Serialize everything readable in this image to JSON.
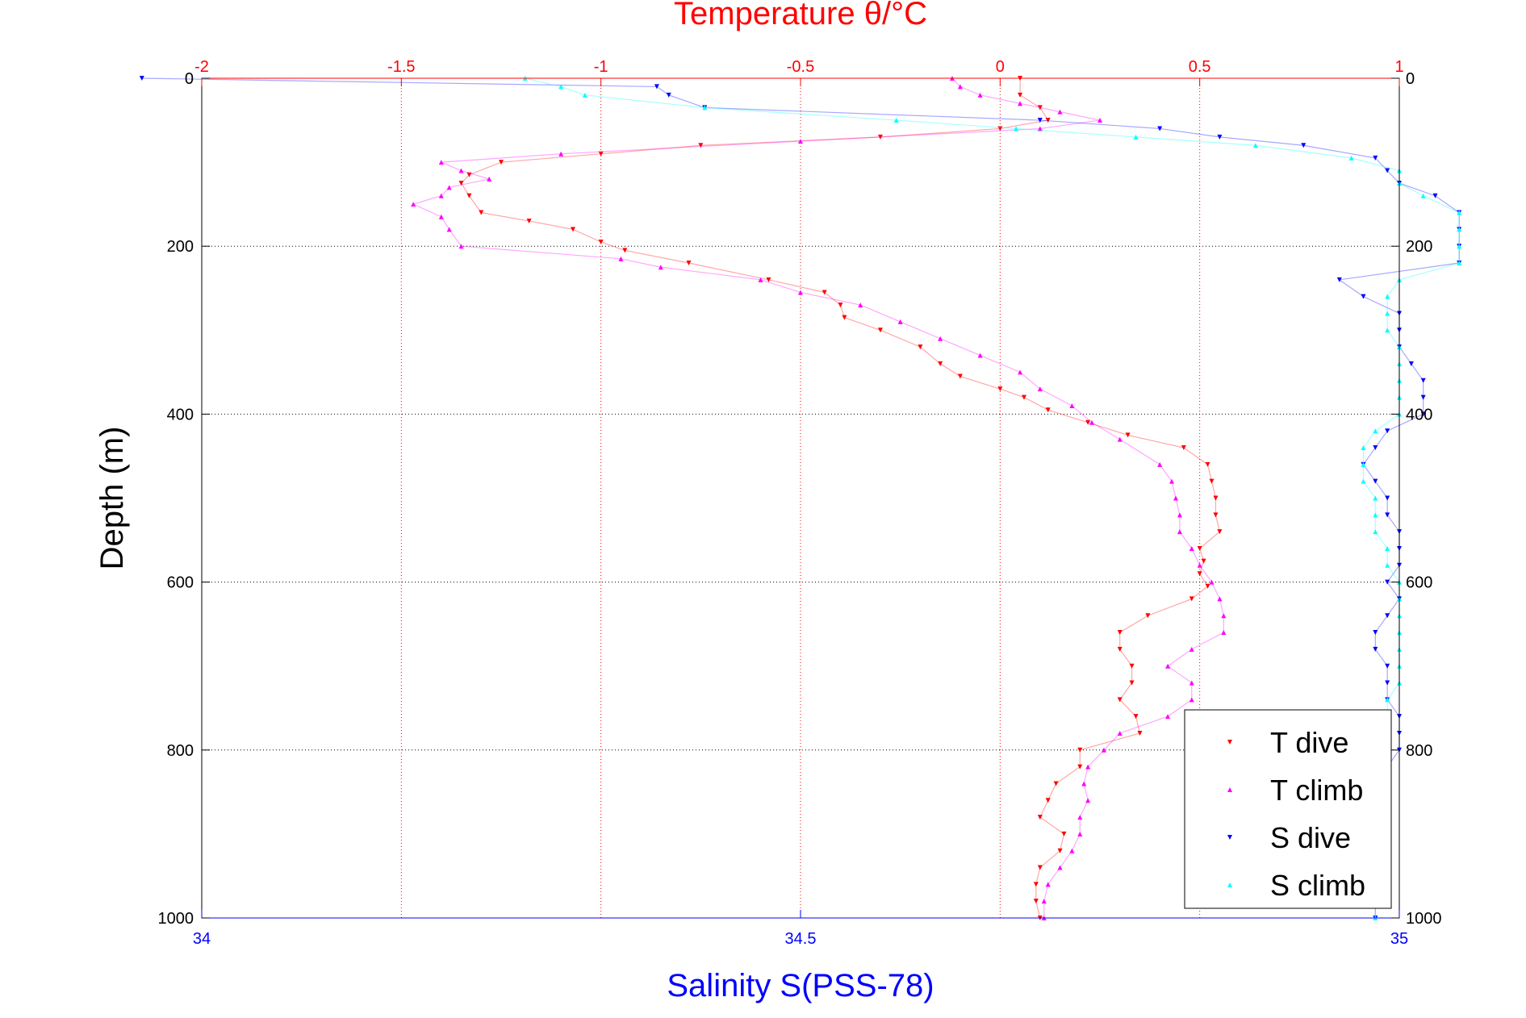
{
  "colors": {
    "temperature_axis": "#ff0000",
    "salinity_axis": "#0000ff",
    "depth_axis": "#000000",
    "t_dive": "#ff0000",
    "t_climb": "#ff00ff",
    "s_dive": "#0000ff",
    "s_climb": "#00ffff",
    "grid": "#000000",
    "vgrid": "#ff0000"
  },
  "chart_data": {
    "type": "scatter",
    "title": "Temperature θ/°C",
    "xlabel": "Salinity S(PSS-78)",
    "ylabel": "Depth (m)",
    "x_top": {
      "label": "Temperature θ/°C",
      "lim": [
        -2,
        1
      ],
      "ticks": [
        -2,
        -1.5,
        -1,
        -0.5,
        0,
        0.5,
        1
      ],
      "tick_labels": [
        "-2",
        "-1.5",
        "-1",
        "-0.5",
        "0",
        "0.5",
        "1"
      ]
    },
    "x_bottom": {
      "label": "Salinity S(PSS-78)",
      "lim": [
        34,
        35
      ],
      "ticks": [
        34,
        34.5,
        35
      ],
      "tick_labels": [
        "34",
        "34.5",
        "35"
      ]
    },
    "y": {
      "label": "Depth (m)",
      "lim": [
        0,
        1000
      ],
      "reversed": true,
      "ticks": [
        0,
        200,
        400,
        600,
        800,
        1000
      ],
      "tick_labels": [
        "0",
        "200",
        "400",
        "600",
        "800",
        "1000"
      ]
    },
    "grid": true,
    "legend": {
      "position": "bottom-right",
      "entries": [
        "T dive",
        "T climb",
        "S dive",
        "S climb"
      ]
    },
    "series": [
      {
        "name": "T dive",
        "axis": "temperature",
        "marker": "triangle-down",
        "depth": [
          0,
          20,
          35,
          50,
          60,
          70,
          80,
          90,
          100,
          115,
          125,
          140,
          160,
          170,
          180,
          195,
          205,
          220,
          240,
          255,
          270,
          285,
          300,
          320,
          340,
          355,
          370,
          380,
          395,
          410,
          425,
          440,
          460,
          480,
          500,
          520,
          540,
          560,
          575,
          590,
          605,
          620,
          640,
          660,
          680,
          700,
          720,
          740,
          760,
          780,
          800,
          820,
          840,
          860,
          880,
          900,
          920,
          940,
          960,
          980,
          1000
        ],
        "x": [
          0.05,
          0.05,
          0.1,
          0.12,
          0.0,
          -0.3,
          -0.75,
          -1.0,
          -1.25,
          -1.33,
          -1.35,
          -1.33,
          -1.3,
          -1.18,
          -1.07,
          -1.0,
          -0.94,
          -0.78,
          -0.58,
          -0.44,
          -0.4,
          -0.39,
          -0.3,
          -0.2,
          -0.15,
          -0.1,
          0.0,
          0.06,
          0.12,
          0.22,
          0.32,
          0.46,
          0.52,
          0.53,
          0.54,
          0.54,
          0.55,
          0.5,
          0.51,
          0.5,
          0.52,
          0.48,
          0.37,
          0.3,
          0.3,
          0.33,
          0.33,
          0.3,
          0.34,
          0.35,
          0.2,
          0.2,
          0.14,
          0.12,
          0.1,
          0.16,
          0.15,
          0.1,
          0.09,
          0.09,
          0.1
        ]
      },
      {
        "name": "T climb",
        "axis": "temperature",
        "marker": "triangle-up",
        "depth": [
          0,
          10,
          20,
          30,
          40,
          50,
          60,
          75,
          90,
          100,
          110,
          120,
          130,
          140,
          150,
          165,
          180,
          200,
          215,
          225,
          240,
          255,
          270,
          290,
          310,
          330,
          350,
          370,
          390,
          410,
          430,
          460,
          480,
          500,
          520,
          540,
          560,
          580,
          600,
          620,
          640,
          660,
          680,
          700,
          720,
          740,
          760,
          780,
          800,
          820,
          840,
          860,
          880,
          900,
          920,
          940,
          960,
          980,
          1000
        ],
        "x": [
          -0.12,
          -0.1,
          -0.05,
          0.05,
          0.15,
          0.25,
          0.1,
          -0.5,
          -1.1,
          -1.4,
          -1.35,
          -1.28,
          -1.38,
          -1.4,
          -1.47,
          -1.4,
          -1.38,
          -1.35,
          -0.95,
          -0.85,
          -0.6,
          -0.5,
          -0.35,
          -0.25,
          -0.15,
          -0.05,
          0.05,
          0.1,
          0.18,
          0.23,
          0.3,
          0.4,
          0.43,
          0.44,
          0.45,
          0.45,
          0.48,
          0.5,
          0.53,
          0.55,
          0.56,
          0.56,
          0.48,
          0.42,
          0.48,
          0.48,
          0.42,
          0.3,
          0.26,
          0.22,
          0.21,
          0.22,
          0.2,
          0.2,
          0.18,
          0.15,
          0.12,
          0.11,
          0.11
        ]
      },
      {
        "name": "S dive",
        "axis": "salinity",
        "marker": "triangle-down",
        "depth": [
          0,
          10,
          20,
          35,
          50,
          60,
          70,
          80,
          95,
          110,
          125,
          140,
          160,
          180,
          200,
          220,
          240,
          260,
          280,
          300,
          320,
          340,
          360,
          380,
          400,
          420,
          440,
          460,
          480,
          500,
          520,
          540,
          560,
          580,
          600,
          620,
          640,
          660,
          680,
          700,
          720,
          740,
          760,
          780,
          800,
          820,
          840,
          860,
          880,
          900,
          920,
          940,
          960,
          980,
          1000
        ],
        "x": [
          33.95,
          34.38,
          34.39,
          34.42,
          34.7,
          34.8,
          34.85,
          34.92,
          34.98,
          34.99,
          35.0,
          35.03,
          35.05,
          35.05,
          35.05,
          35.05,
          34.95,
          34.97,
          35.0,
          35.0,
          35.0,
          35.01,
          35.02,
          35.02,
          35.02,
          34.99,
          34.98,
          34.97,
          34.98,
          34.99,
          34.99,
          35.0,
          35.0,
          35.0,
          34.99,
          35.0,
          34.99,
          34.98,
          34.98,
          34.99,
          34.99,
          34.99,
          35.0,
          35.0,
          35.0,
          34.99,
          34.99,
          34.99,
          34.98,
          34.98,
          34.98,
          34.99,
          34.98,
          34.98,
          34.98
        ]
      },
      {
        "name": "S climb",
        "axis": "salinity",
        "marker": "triangle-up",
        "depth": [
          0,
          10,
          20,
          35,
          50,
          60,
          70,
          80,
          95,
          110,
          125,
          140,
          160,
          180,
          200,
          220,
          240,
          260,
          280,
          300,
          320,
          340,
          360,
          380,
          400,
          420,
          440,
          460,
          480,
          500,
          520,
          540,
          560,
          580,
          600,
          620,
          640,
          660,
          680,
          700,
          720,
          740,
          760,
          780,
          800,
          820,
          840,
          860,
          880,
          900,
          920,
          940,
          960,
          980,
          1000
        ],
        "x": [
          34.27,
          34.3,
          34.32,
          34.42,
          34.58,
          34.68,
          34.78,
          34.88,
          34.96,
          35.0,
          35.0,
          35.02,
          35.05,
          35.05,
          35.05,
          35.05,
          35.0,
          34.99,
          34.99,
          34.99,
          35.0,
          35.0,
          35.0,
          35.0,
          35.0,
          34.98,
          34.97,
          34.97,
          34.97,
          34.98,
          34.98,
          34.98,
          34.99,
          34.99,
          35.0,
          35.0,
          35.0,
          35.0,
          35.0,
          35.0,
          35.0,
          34.99,
          34.99,
          34.98,
          34.98,
          34.98,
          34.98,
          34.98,
          34.98,
          34.98,
          34.98,
          34.98,
          34.98,
          34.98,
          34.98
        ]
      }
    ]
  }
}
